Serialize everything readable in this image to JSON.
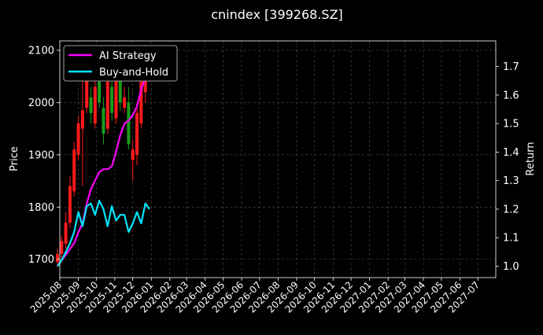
{
  "chart_data": {
    "type": "line",
    "title": "cnindex [399268.SZ]",
    "y_left_label": "Price",
    "y_right_label": "Return",
    "y_left_ticks": [
      1700,
      1800,
      1900,
      2000,
      2100
    ],
    "y_left_range": [
      1665,
      2118
    ],
    "y_right_ticks": [
      1.0,
      1.1,
      1.2,
      1.3,
      1.4,
      1.5,
      1.6,
      1.7
    ],
    "y_right_range": [
      0.96,
      1.79
    ],
    "x_range": [
      "2025-08-01",
      "2027-07-31"
    ],
    "x_tick_labels": [
      "2025-08",
      "2025-09",
      "2025-10",
      "2025-11",
      "2025-12",
      "2026-01",
      "2026-02",
      "2026-03",
      "2026-04",
      "2026-05",
      "2026-06",
      "2026-07",
      "2026-08",
      "2026-09",
      "2026-10",
      "2026-11",
      "2026-12",
      "2027-01",
      "2027-02",
      "2027-03",
      "2027-04",
      "2027-05",
      "2027-06",
      "2027-07"
    ],
    "grid": true,
    "legend_position": "top-left",
    "colors": {
      "background": "#000000",
      "ai_strategy": "#ff00ff",
      "buy_and_hold": "#00e5ff",
      "candle_up": "#ff1a1a",
      "candle_down": "#1a9b1a",
      "grid": "#4d4d4d"
    },
    "series": [
      {
        "name": "AI Strategy",
        "axis": "right",
        "x": [
          "2025-07-28",
          "2025-08-04",
          "2025-08-11",
          "2025-08-18",
          "2025-08-25",
          "2025-09-01",
          "2025-09-08",
          "2025-09-15",
          "2025-09-22",
          "2025-09-29",
          "2025-10-06",
          "2025-10-13",
          "2025-10-20",
          "2025-10-27",
          "2025-11-03",
          "2025-11-10",
          "2025-11-17",
          "2025-11-24",
          "2025-12-01",
          "2025-12-08",
          "2025-12-15",
          "2025-12-22",
          "2025-12-29"
        ],
        "values": [
          1.0,
          1.02,
          1.04,
          1.06,
          1.08,
          1.12,
          1.15,
          1.22,
          1.27,
          1.3,
          1.33,
          1.34,
          1.34,
          1.35,
          1.4,
          1.46,
          1.5,
          1.51,
          1.53,
          1.56,
          1.62,
          1.66,
          1.7
        ]
      },
      {
        "name": "Buy-and-Hold",
        "axis": "right",
        "x": [
          "2025-07-28",
          "2025-08-04",
          "2025-08-11",
          "2025-08-18",
          "2025-08-25",
          "2025-09-01",
          "2025-09-08",
          "2025-09-15",
          "2025-09-22",
          "2025-09-29",
          "2025-10-06",
          "2025-10-13",
          "2025-10-20",
          "2025-10-27",
          "2025-11-03",
          "2025-11-10",
          "2025-11-17",
          "2025-11-24",
          "2025-12-01",
          "2025-12-08",
          "2025-12-15",
          "2025-12-22",
          "2025-12-29"
        ],
        "values": [
          1.0,
          1.02,
          1.05,
          1.08,
          1.12,
          1.19,
          1.14,
          1.21,
          1.22,
          1.18,
          1.23,
          1.2,
          1.14,
          1.21,
          1.16,
          1.18,
          1.18,
          1.12,
          1.15,
          1.19,
          1.15,
          1.22,
          1.2
        ]
      },
      {
        "name": "Price",
        "type": "candlestick",
        "axis": "left",
        "x": [
          "2025-07-28",
          "2025-08-04",
          "2025-08-11",
          "2025-08-18",
          "2025-08-25",
          "2025-09-01",
          "2025-09-08",
          "2025-09-15",
          "2025-09-22",
          "2025-09-29",
          "2025-10-06",
          "2025-10-13",
          "2025-10-20",
          "2025-10-27",
          "2025-11-03",
          "2025-11-10",
          "2025-11-17",
          "2025-11-24",
          "2025-12-01",
          "2025-12-08",
          "2025-12-15",
          "2025-12-22",
          "2025-12-29"
        ],
        "open": [
          1695,
          1710,
          1730,
          1770,
          1830,
          1900,
          1950,
          1990,
          2010,
          1960,
          2040,
          1990,
          1950,
          2030,
          1970,
          2060,
          1990,
          2000,
          1890,
          1900,
          1960,
          2020,
          2080
        ],
        "close": [
          1710,
          1735,
          1770,
          1840,
          1910,
          1960,
          1985,
          2050,
          1980,
          2030,
          2000,
          1940,
          2040,
          1980,
          2070,
          2000,
          2010,
          1920,
          1910,
          1980,
          2040,
          2090,
          2070
        ],
        "high": [
          1720,
          1745,
          1790,
          1860,
          1925,
          1975,
          2070,
          2075,
          2030,
          2070,
          2080,
          2010,
          2060,
          2060,
          2085,
          2085,
          2030,
          2030,
          1930,
          2000,
          2060,
          2110,
          2100
        ],
        "low": [
          1685,
          1700,
          1720,
          1760,
          1820,
          1890,
          1840,
          1980,
          1960,
          1950,
          1990,
          1920,
          1940,
          1965,
          1960,
          1985,
          1980,
          1910,
          1850,
          1880,
          1950,
          2000,
          2050
        ]
      }
    ]
  }
}
